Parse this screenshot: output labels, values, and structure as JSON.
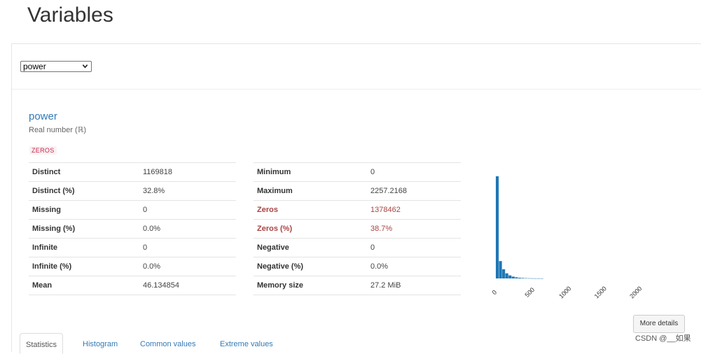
{
  "page": {
    "title": "Variables"
  },
  "selector": {
    "value": "power"
  },
  "variable": {
    "name": "power",
    "type": "Real number (ℝ)",
    "badge": "ZEROS"
  },
  "stats_left": [
    {
      "label": "Distinct",
      "value": "1169818"
    },
    {
      "label": "Distinct (%)",
      "value": "32.8%"
    },
    {
      "label": "Missing",
      "value": "0"
    },
    {
      "label": "Missing (%)",
      "value": "0.0%"
    },
    {
      "label": "Infinite",
      "value": "0"
    },
    {
      "label": "Infinite (%)",
      "value": "0.0%"
    },
    {
      "label": "Mean",
      "value": "46.134854"
    }
  ],
  "stats_right": [
    {
      "label": "Minimum",
      "value": "0"
    },
    {
      "label": "Maximum",
      "value": "2257.2168"
    },
    {
      "label": "Zeros",
      "value": "1378462",
      "alert": true
    },
    {
      "label": "Zeros (%)",
      "value": "38.7%",
      "alert": true
    },
    {
      "label": "Negative",
      "value": "0"
    },
    {
      "label": "Negative (%)",
      "value": "0.0%"
    },
    {
      "label": "Memory size",
      "value": "27.2 MiB"
    }
  ],
  "chart_data": {
    "type": "bar",
    "x_ticks": [
      "0",
      "500",
      "1000",
      "1500",
      "2000"
    ],
    "xlim": [
      0,
      2257.2168
    ],
    "bins": [
      {
        "x": 0,
        "count": 1.0
      },
      {
        "x": 45,
        "count": 0.17
      },
      {
        "x": 90,
        "count": 0.09
      },
      {
        "x": 135,
        "count": 0.05
      },
      {
        "x": 180,
        "count": 0.03
      },
      {
        "x": 225,
        "count": 0.018
      },
      {
        "x": 270,
        "count": 0.011
      },
      {
        "x": 315,
        "count": 0.007
      },
      {
        "x": 360,
        "count": 0.005
      },
      {
        "x": 405,
        "count": 0.003
      },
      {
        "x": 450,
        "count": 0.002
      },
      {
        "x": 495,
        "count": 0.0015
      },
      {
        "x": 540,
        "count": 0.001
      },
      {
        "x": 585,
        "count": 0.001
      },
      {
        "x": 630,
        "count": 0.0008
      }
    ],
    "color": "#1f77b4"
  },
  "buttons": {
    "more_details": "More details"
  },
  "tabs": [
    {
      "label": "Statistics",
      "active": true
    },
    {
      "label": "Histogram"
    },
    {
      "label": "Common values"
    },
    {
      "label": "Extreme values"
    }
  ],
  "watermark": "CSDN @__如果"
}
